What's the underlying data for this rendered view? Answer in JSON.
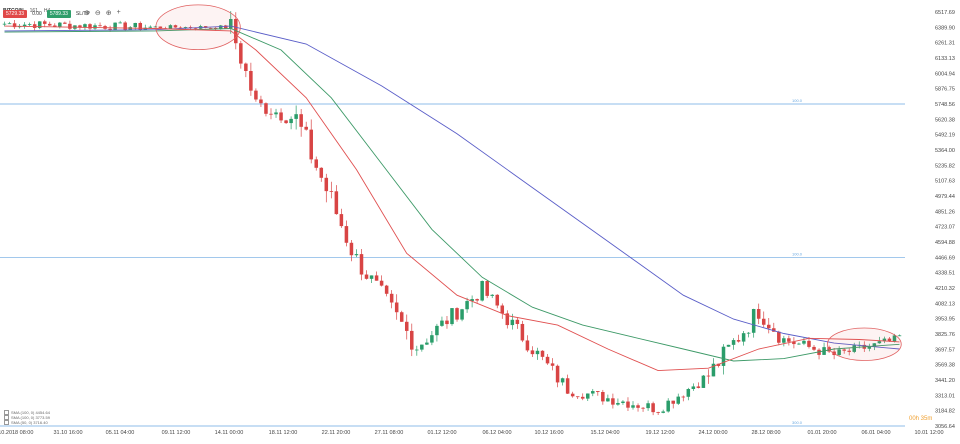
{
  "header": {
    "symbol": "BITCOIN",
    "meta1": "161",
    "timeframe": "H4",
    "sell_price": "5729.33",
    "spread": "0.00",
    "buy_price": "5789.33",
    "sltp_label": "SL/TP"
  },
  "toolbar": {
    "icons": [
      "crosshair-icon",
      "zoom-out-icon",
      "zoom-in-icon",
      "plus-icon"
    ]
  },
  "indicators": [
    {
      "label": "SMA (100, 0) 4454.64",
      "color": "#3a7abf"
    },
    {
      "label": "SMA (100, 0) 3773.59",
      "color": "#4e9e6a"
    },
    {
      "label": "SMA (50, 0) 3716.40",
      "color": "#d84040"
    }
  ],
  "countdown": "00h 35m",
  "colors": {
    "up": "#2a9d6a",
    "down": "#d84444",
    "sma_red": "#e05050",
    "sma_green": "#3e9a68",
    "sma_blue": "#5a5ec8",
    "hline": "#6aa8e0",
    "ellipse": "#e06060"
  },
  "chart_data": {
    "type": "candlestick",
    "y_ticks": [
      "6517.69",
      "6389.90",
      "6261.31",
      "6133.13",
      "6004.94",
      "5876.75",
      "5748.56",
      "5620.38",
      "5492.19",
      "5364.00",
      "5235.82",
      "5107.63",
      "4979.44",
      "4851.26",
      "4723.07",
      "4594.88",
      "4466.69",
      "4338.51",
      "4210.32",
      "4082.13",
      "3953.95",
      "3825.76",
      "3697.57",
      "3569.38",
      "3441.20",
      "3313.01",
      "3184.82",
      "3056.64"
    ],
    "x_ticks": [
      "27.10.2018 08:00",
      "31.10 16:00",
      "05.11 04:00",
      "09.11 12:00",
      "14.11 00:00",
      "18.11 12:00",
      "22.11 20:00",
      "27.11 08:00",
      "01.12 12:00",
      "06.12 04:00",
      "10.12 16:00",
      "15.12 04:00",
      "19.12 12:00",
      "24.12 00:00",
      "28.12 08:00",
      "01.01 20:00",
      "06.01 04:00",
      "10.01 12:00"
    ],
    "ylim": [
      3056.64,
      6517.69
    ],
    "horizontal_lines": [
      {
        "label": "100.0",
        "value": 5748.56
      },
      {
        "label": "100.0",
        "value": 4466.69
      },
      {
        "label": "300.0",
        "value": 3056.64
      }
    ],
    "segments": [
      {
        "from": 0,
        "to": 30,
        "start": 6420,
        "end": 6390,
        "vol": 35
      },
      {
        "from": 30,
        "to": 45,
        "start": 6390,
        "end": 6390,
        "vol": 18
      },
      {
        "from": 45,
        "to": 50,
        "start": 6390,
        "end": 5750,
        "vol": 90
      },
      {
        "from": 50,
        "to": 58,
        "start": 5750,
        "end": 5620,
        "vol": 70
      },
      {
        "from": 58,
        "to": 70,
        "start": 5620,
        "end": 4450,
        "vol": 120
      },
      {
        "from": 70,
        "to": 82,
        "start": 4450,
        "end": 3720,
        "vol": 90
      },
      {
        "from": 82,
        "to": 95,
        "start": 3720,
        "end": 4200,
        "vol": 70
      },
      {
        "from": 95,
        "to": 112,
        "start": 4200,
        "end": 3360,
        "vol": 70
      },
      {
        "from": 112,
        "to": 130,
        "start": 3360,
        "end": 3200,
        "vol": 50
      },
      {
        "from": 130,
        "to": 140,
        "start": 3200,
        "end": 3480,
        "vol": 50
      },
      {
        "from": 140,
        "to": 150,
        "start": 3480,
        "end": 4020,
        "vol": 90
      },
      {
        "from": 150,
        "to": 155,
        "start": 4020,
        "end": 3780,
        "vol": 80
      },
      {
        "from": 155,
        "to": 165,
        "start": 3780,
        "end": 3650,
        "vol": 50
      },
      {
        "from": 165,
        "to": 178,
        "start": 3650,
        "end": 3780,
        "vol": 45
      }
    ],
    "sma_red": [
      [
        0,
        6400
      ],
      [
        30,
        6380
      ],
      [
        45,
        6360
      ],
      [
        50,
        6200
      ],
      [
        60,
        5800
      ],
      [
        70,
        5200
      ],
      [
        80,
        4500
      ],
      [
        90,
        4150
      ],
      [
        100,
        3980
      ],
      [
        110,
        3900
      ],
      [
        120,
        3700
      ],
      [
        130,
        3520
      ],
      [
        140,
        3540
      ],
      [
        150,
        3700
      ],
      [
        160,
        3790
      ],
      [
        170,
        3780
      ],
      [
        178,
        3760
      ]
    ],
    "sma_green": [
      [
        0,
        6350
      ],
      [
        30,
        6360
      ],
      [
        45,
        6380
      ],
      [
        55,
        6200
      ],
      [
        65,
        5800
      ],
      [
        75,
        5250
      ],
      [
        85,
        4700
      ],
      [
        95,
        4300
      ],
      [
        105,
        4050
      ],
      [
        115,
        3900
      ],
      [
        125,
        3800
      ],
      [
        135,
        3700
      ],
      [
        145,
        3600
      ],
      [
        155,
        3620
      ],
      [
        165,
        3700
      ],
      [
        178,
        3740
      ]
    ],
    "sma_blue": [
      [
        0,
        6360
      ],
      [
        30,
        6370
      ],
      [
        45,
        6400
      ],
      [
        60,
        6250
      ],
      [
        75,
        5900
      ],
      [
        90,
        5500
      ],
      [
        105,
        5050
      ],
      [
        120,
        4600
      ],
      [
        135,
        4150
      ],
      [
        145,
        3950
      ],
      [
        155,
        3830
      ],
      [
        165,
        3750
      ],
      [
        178,
        3700
      ]
    ],
    "ellipses": [
      {
        "cx_index": 38.5,
        "cy": 6390,
        "rx_bars": 8,
        "ry_val": 110
      },
      {
        "cx_index": 171,
        "cy": 3740,
        "rx_bars": 7,
        "ry_val": 80
      }
    ],
    "bars": 179
  }
}
